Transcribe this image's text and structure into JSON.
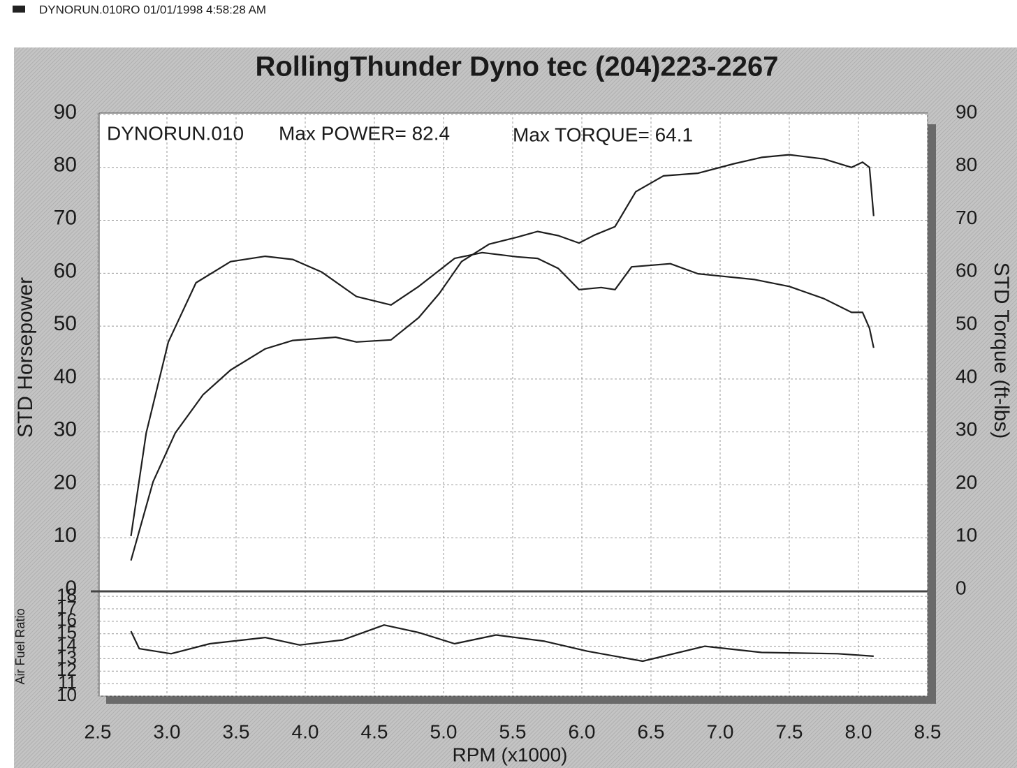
{
  "header": "DYNORUN.010RO  01/01/1998 4:58:28 AM",
  "chart_data": [
    {
      "type": "line",
      "title": "RollingThunder Dyno tec (204)223-2267",
      "annotations": [
        "DYNORUN.010",
        "Max POWER= 82.4",
        "Max TORQUE= 64.1"
      ],
      "y_label": "STD Horsepower",
      "y2_label": "STD Torque (ft-lbs)",
      "xlim": [
        2.5,
        8.5
      ],
      "ylim": [
        0,
        90
      ],
      "yticks": [
        0,
        10,
        20,
        30,
        40,
        50,
        60,
        70,
        80,
        90
      ],
      "y2lim": [
        0,
        90
      ],
      "y2ticks": [
        0,
        10,
        20,
        30,
        40,
        50,
        60,
        70,
        80,
        90
      ],
      "grid": true,
      "series": [
        {
          "color": "#1e1e1e",
          "x": [
            2.74,
            2.8,
            2.9,
            3.06,
            3.26,
            3.46,
            3.71,
            3.91,
            4.22,
            4.37,
            4.62,
            4.82,
            4.97,
            5.13,
            5.33,
            5.53,
            5.68,
            5.83,
            5.98,
            6.09,
            6.24,
            6.39,
            6.59,
            6.84,
            7.1,
            7.3,
            7.5,
            7.75,
            7.95,
            8.03,
            8.08,
            8.11
          ],
          "values": [
            5.7,
            11.3,
            20.6,
            29.8,
            37,
            41.7,
            45.7,
            47.3,
            47.9,
            47,
            47.4,
            51.6,
            56.2,
            62.2,
            65.5,
            66.8,
            67.9,
            67.1,
            65.7,
            67.2,
            68.8,
            75.4,
            78.4,
            78.9,
            80.7,
            81.9,
            82.4,
            81.6,
            80,
            81,
            80,
            70.8
          ]
        },
        {
          "color": "#1e1e1e",
          "axis": "y2",
          "x": [
            2.74,
            2.85,
            3.01,
            3.21,
            3.46,
            3.71,
            3.91,
            4.12,
            4.37,
            4.62,
            4.82,
            5.08,
            5.28,
            5.53,
            5.68,
            5.83,
            5.98,
            6.14,
            6.24,
            6.36,
            6.64,
            6.84,
            7.25,
            7.5,
            7.75,
            7.95,
            8.03,
            8.08,
            8.11
          ],
          "values": [
            10.3,
            29.8,
            47,
            58.2,
            62.2,
            63.2,
            62.6,
            60.2,
            55.6,
            54,
            57.5,
            62.8,
            63.9,
            63.1,
            62.8,
            60.9,
            56.9,
            57.3,
            56.9,
            61.2,
            61.8,
            59.9,
            58.8,
            57.5,
            55.2,
            52.6,
            52.6,
            49.6,
            45.9
          ]
        }
      ]
    },
    {
      "type": "line",
      "y_label": "Air Fuel Ratio",
      "x_label": "RPM (x1000)",
      "xlim": [
        2.5,
        8.5
      ],
      "xticks": [
        2.5,
        {
          "value": 3,
          "label": "3.0"
        },
        3.5,
        {
          "value": 4,
          "label": "4.0"
        },
        4.5,
        {
          "value": 5,
          "label": "5.0"
        },
        5.5,
        {
          "value": 6,
          "label": "6.0"
        },
        6.5,
        {
          "value": 7,
          "label": "7.0"
        },
        7.5,
        {
          "value": 8,
          "label": "8.0"
        },
        8.5
      ],
      "ylim": [
        10,
        18.4
      ],
      "yticks": [
        10,
        11,
        12,
        13,
        14,
        15,
        16,
        17,
        18
      ],
      "grid": true,
      "series": [
        {
          "color": "#1e1e1e",
          "x": [
            2.74,
            2.8,
            3.03,
            3.31,
            3.71,
            3.96,
            4.27,
            4.57,
            4.82,
            5.08,
            5.38,
            5.73,
            6.04,
            6.44,
            6.89,
            7.3,
            7.85,
            8.11
          ],
          "values": [
            15.2,
            13.8,
            13.4,
            14.2,
            14.7,
            14.1,
            14.5,
            15.7,
            15.1,
            14.2,
            14.9,
            14.4,
            13.6,
            12.8,
            14,
            13.5,
            13.4,
            13.2
          ]
        }
      ]
    }
  ]
}
